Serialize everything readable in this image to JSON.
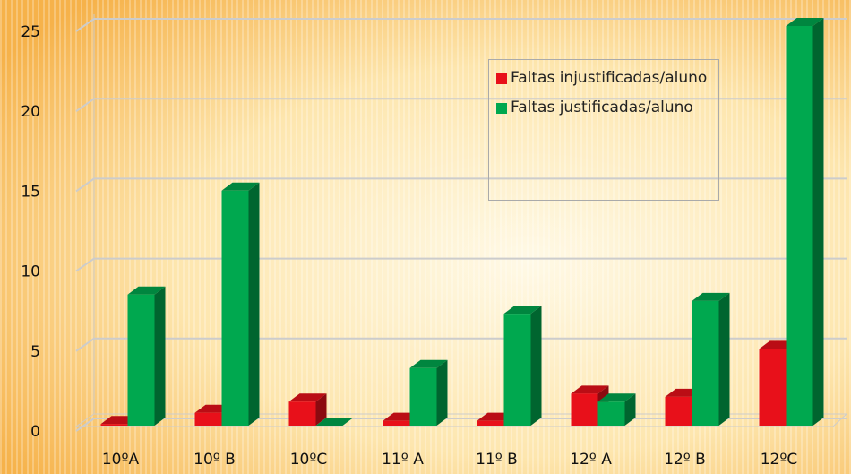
{
  "chart_data": {
    "type": "bar3d",
    "categories": [
      "10ºA",
      "10º B",
      "10ºC",
      "11º A",
      "11º B",
      "12º A",
      "12º B",
      "12ºC"
    ],
    "series": [
      {
        "name": "Faltas injustificadas/aluno",
        "color": "#e8101a",
        "values": [
          0.1,
          0.8,
          1.5,
          0.3,
          0.3,
          2,
          1.8,
          4.8
        ]
      },
      {
        "name": "Faltas justificadas/aluno",
        "color": "#00a84f",
        "values": [
          8.2,
          14.7,
          0,
          3.6,
          7,
          1.5,
          7.8,
          25
        ]
      }
    ],
    "ylim": [
      0,
      25
    ],
    "yticks": [
      0,
      5,
      10,
      15,
      20,
      25
    ],
    "grid": true,
    "legend": "top-right"
  }
}
